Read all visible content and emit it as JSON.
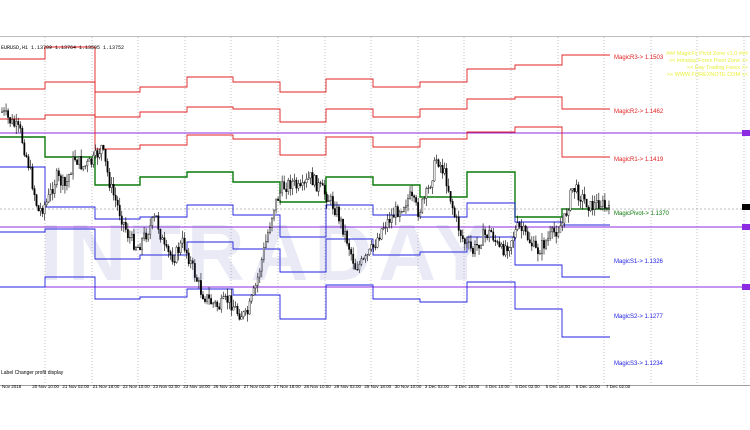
{
  "chart": {
    "symbol_info": "EURUSD,H1  1.13709 1.13764 1.13595 1.13752",
    "indicator_info": [
      "### MagicFx Pivot Zone v1.0 ###",
      "<< Intraday Forex Pivot Zone >>",
      "<< Day Trading Forex >>",
      ">> WWW.FOREXNOTE.COM <<"
    ],
    "status_text": "Label Changer profit display",
    "watermark": "INTRADAY",
    "colors": {
      "resistance": "#e02020",
      "support": "#2020e0",
      "pivot": "#0a7a0a",
      "level_line": "#8b2be2",
      "candle": "#000000"
    },
    "levels": [
      {
        "name": "r3",
        "label": "MagicR3-> 1.1503",
        "color": "#e02020"
      },
      {
        "name": "r2",
        "label": "MagicR2-> 1.1462",
        "color": "#e02020"
      },
      {
        "name": "r1",
        "label": "MagicR1-> 1.1419",
        "color": "#e02020"
      },
      {
        "name": "pivot",
        "label": "MagicPivot-> 1.1370",
        "color": "#0a7a0a"
      },
      {
        "name": "s1",
        "label": "MagicS1-> 1.1326",
        "color": "#2020e0"
      },
      {
        "name": "s2",
        "label": "MagicS2-> 1.1277",
        "color": "#2020e0"
      },
      {
        "name": "s3",
        "label": "MagicS3-> 1.1234",
        "color": "#2020e0"
      }
    ],
    "time_labels": [
      "Nov 2018",
      "20 Nov 10:00",
      "21 Nov 02:00",
      "21 Nov 18:00",
      "22 Nov 10:00",
      "23 Nov 02:00",
      "23 Nov 18:00",
      "26 Nov 10:00",
      "27 Nov 02:00",
      "27 Nov 18:00",
      "28 Nov 10:00",
      "29 Nov 02:00",
      "29 Nov 18:00",
      "30 Nov 10:00",
      "3 Dec 02:00",
      "3 Dec 18:00",
      "4 Dec 10:00",
      "5 Dec 02:00",
      "5 Dec 18:00",
      "6 Dec 10:00",
      "7 Dec 02:00"
    ]
  }
}
